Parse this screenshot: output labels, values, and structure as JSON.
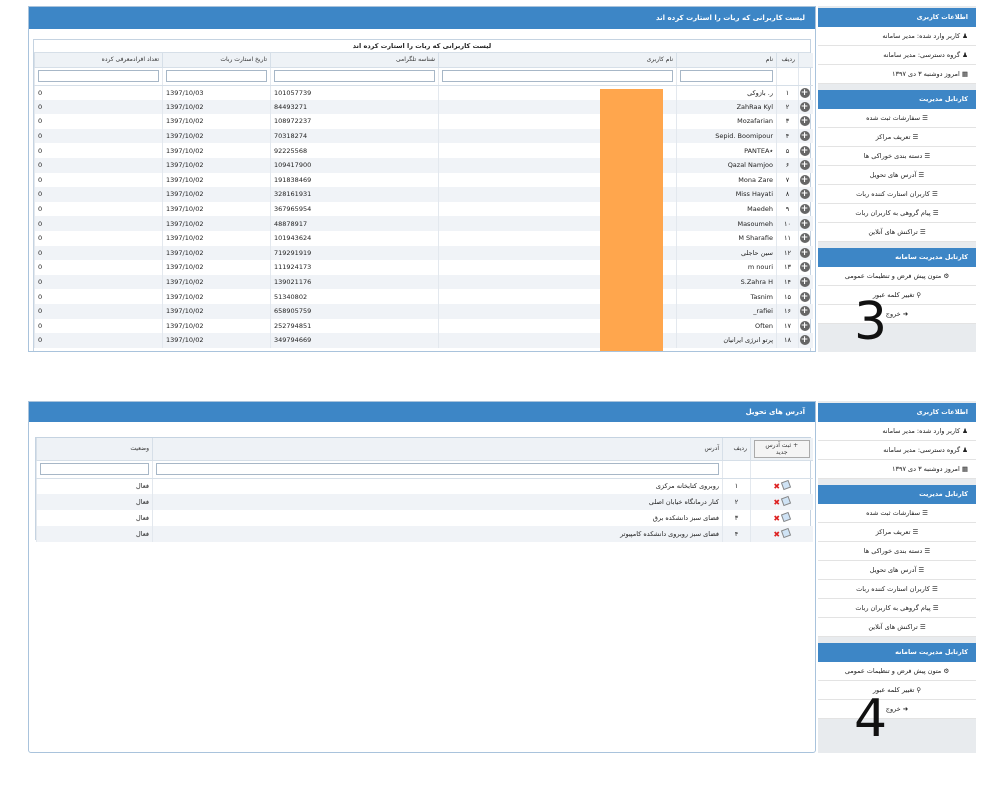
{
  "sidebar": {
    "user_info_title": "اطلاعات کاربری",
    "user_logged": "کاربر وارد شده: مدیر سامانه",
    "user_group": "گروه دسترسی: مدیر سامانه",
    "today": "امروز دوشنبه ۳ دی ۱۳۹۷",
    "admin_panel_title": "کارتابل مدیریت",
    "admin_items": [
      "سفارشات ثبت شده",
      "تعریف مراکز",
      "دسته بندی خوراکی ها",
      "آدرس های تحویل",
      "کاربران استارت کننده ربات",
      "پیام گروهی به کاربران ربات",
      "تراکنش های آنلاین"
    ],
    "system_panel_title": "کارتابل مدیریت سامانه",
    "system_items": [
      "متون پیش فرض و تنظیمات عمومی",
      "تغییر کلمه عبور",
      "خروج"
    ]
  },
  "screen3": {
    "label": "3",
    "header": "لیست کاربرانی که ربات را استارت کرده اند",
    "caption": "لیست کاربرانی که ربات را استارت کرده اند",
    "columns": [
      "ردیف",
      "نام",
      "نام کاربری",
      "شناسه تلگرامی",
      "تاریخ استارت ربات",
      "تعداد افرادمعرفی کرده"
    ],
    "rows": [
      {
        "idx": "۱",
        "name": "ر. بازوکی",
        "tid": "101057739",
        "date": "1397/10/03",
        "count": "0"
      },
      {
        "idx": "۲",
        "name": "ZahRaa Kyl",
        "tid": "84493271",
        "date": "1397/10/02",
        "count": "0"
      },
      {
        "idx": "۳",
        "name": "Mozafarian",
        "tid": "108972237",
        "date": "1397/10/02",
        "count": "0"
      },
      {
        "idx": "۴",
        "name": "Sepid. Boomipour",
        "tid": "70318274",
        "date": "1397/10/02",
        "count": "0"
      },
      {
        "idx": "۵",
        "name": "٭PANTEA",
        "tid": "92225568",
        "date": "1397/10/02",
        "count": "0"
      },
      {
        "idx": "۶",
        "name": "Qazal Namjoo",
        "tid": "109417900",
        "date": "1397/10/02",
        "count": "0"
      },
      {
        "idx": "۷",
        "name": "Mona Zare",
        "tid": "191838469",
        "date": "1397/10/02",
        "count": "0"
      },
      {
        "idx": "۸",
        "name": "Miss Hayati",
        "tid": "328161931",
        "date": "1397/10/02",
        "count": "0"
      },
      {
        "idx": "۹",
        "name": "Maedeh",
        "tid": "367965954",
        "date": "1397/10/02",
        "count": "0"
      },
      {
        "idx": "۱۰",
        "name": "Masoumeh",
        "tid": "48878917",
        "date": "1397/10/02",
        "count": "0"
      },
      {
        "idx": "۱۱",
        "name": "M Sharafie",
        "tid": "101943624",
        "date": "1397/10/02",
        "count": "0"
      },
      {
        "idx": "۱۲",
        "name": "سین حاجلی",
        "tid": "719291919",
        "date": "1397/10/02",
        "count": "0"
      },
      {
        "idx": "۱۳",
        "name": "m nouri",
        "tid": "111924173",
        "date": "1397/10/02",
        "count": "0"
      },
      {
        "idx": "۱۴",
        "name": "S.Zahra H",
        "tid": "139021176",
        "date": "1397/10/02",
        "count": "0"
      },
      {
        "idx": "۱۵",
        "name": "Tasnim",
        "tid": "51340802",
        "date": "1397/10/02",
        "count": "0"
      },
      {
        "idx": "۱۶",
        "name": "rafiei_",
        "tid": "658905759",
        "date": "1397/10/02",
        "count": "0"
      },
      {
        "idx": "۱۷",
        "name": "Often",
        "tid": "252794851",
        "date": "1397/10/02",
        "count": "0"
      },
      {
        "idx": "۱۸",
        "name": "پرتو انرژی ایرانیان",
        "tid": "349794669",
        "date": "1397/10/02",
        "count": "0"
      }
    ]
  },
  "screen4": {
    "label": "4",
    "header": "آدرس های تحویل",
    "add_button": "ثبت آدرس جدید",
    "columns": [
      "ردیف",
      "آدرس",
      "وضعیت"
    ],
    "rows": [
      {
        "idx": "۱",
        "address": "روبروی کتابخانه مرکزی",
        "status": "فعال"
      },
      {
        "idx": "۲",
        "address": "کنار درمانگاه خیابان اصلی",
        "status": "فعال"
      },
      {
        "idx": "۳",
        "address": "فضای سبز دانشکده برق",
        "status": "فعال"
      },
      {
        "idx": "۴",
        "address": "فضای سبز روبروی دانشکده کامپیوتر",
        "status": "فعال"
      }
    ]
  },
  "colors": {
    "header_blue": "#3d86c6",
    "redaction_orange": "#ffa64d"
  },
  "icons": {
    "plus": "plus-circle-icon",
    "edit": "edit-icon",
    "delete": "delete-icon",
    "user": "user-icon",
    "group": "group-icon",
    "calendar": "calendar-icon",
    "list": "list-icon",
    "gear": "gear-icon",
    "key": "key-icon",
    "logout": "logout-icon",
    "add": "plus-icon"
  }
}
